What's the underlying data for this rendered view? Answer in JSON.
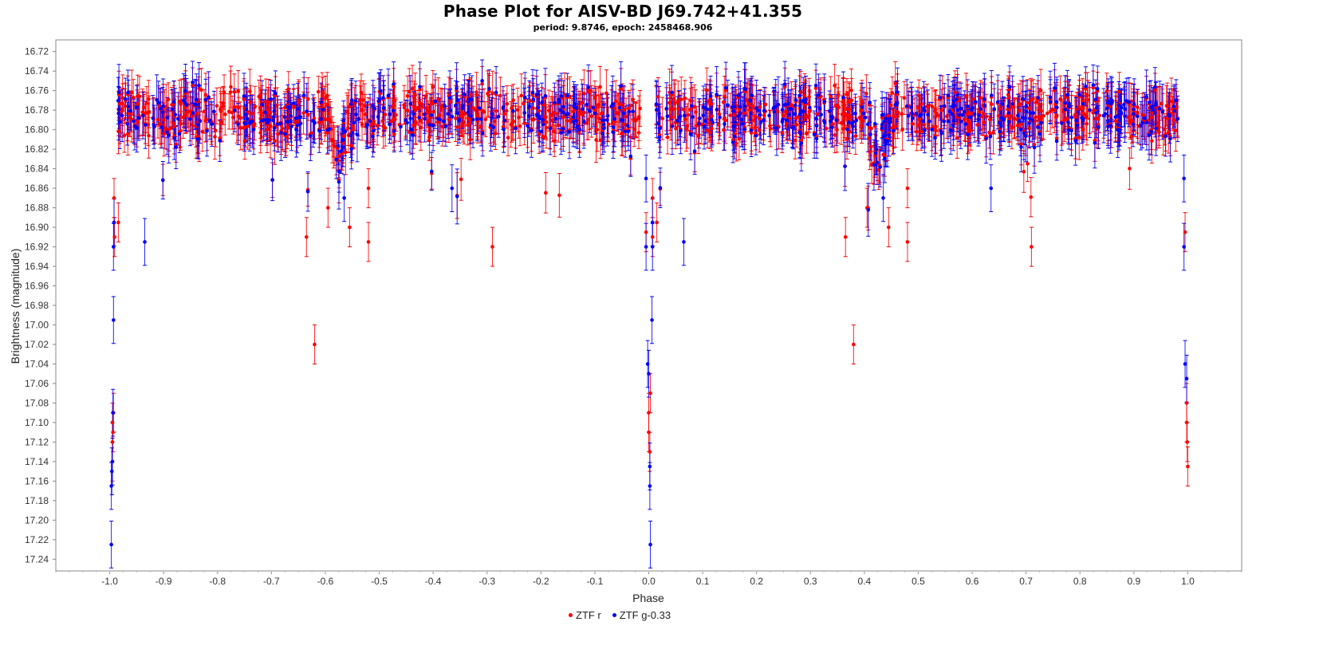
{
  "chart_data": {
    "type": "scatter",
    "title": "Phase Plot for AISV-BD J69.742+41.355",
    "subtitle": "period: 9.8746, epoch: 2458468.906",
    "xlabel": "Phase",
    "ylabel": "Brightness (magnitude)",
    "xlim": [
      -1.1,
      1.1
    ],
    "ylim": [
      17.252,
      16.708
    ],
    "y_inverted": true,
    "x_ticks": [
      "-1.0",
      "-0.9",
      "-0.8",
      "-0.7",
      "-0.6",
      "-0.5",
      "-0.4",
      "-0.3",
      "-0.2",
      "-0.1",
      "0.0",
      "0.1",
      "0.2",
      "0.3",
      "0.4",
      "0.5",
      "0.6",
      "0.7",
      "0.8",
      "0.9",
      "1.0"
    ],
    "y_ticks": [
      "16.72",
      "16.74",
      "16.76",
      "16.78",
      "16.80",
      "16.82",
      "16.84",
      "16.86",
      "16.88",
      "16.90",
      "16.92",
      "16.94",
      "16.96",
      "16.98",
      "17.00",
      "17.02",
      "17.04",
      "17.06",
      "17.08",
      "17.10",
      "17.12",
      "17.14",
      "17.16",
      "17.18",
      "17.20",
      "17.22",
      "17.24"
    ],
    "legend_position": "bottom-center",
    "grid": false,
    "series": [
      {
        "name": "ZTF r",
        "color": "#ff0000",
        "baseline_mag": 16.785,
        "baseline_scatter": 0.02,
        "error_bar": 0.02,
        "eclipse_points": [
          {
            "x": -0.995,
            "y": 17.14
          },
          {
            "x": -0.995,
            "y": 17.12
          },
          {
            "x": -0.995,
            "y": 17.1
          },
          {
            "x": -0.994,
            "y": 17.11
          },
          {
            "x": -0.993,
            "y": 17.09
          },
          {
            "x": -0.992,
            "y": 16.87
          },
          {
            "x": -0.991,
            "y": 16.91
          },
          {
            "x": -0.984,
            "y": 16.895
          },
          {
            "x": -0.62,
            "y": 17.02
          },
          {
            "x": -0.635,
            "y": 16.91
          },
          {
            "x": -0.595,
            "y": 16.88
          },
          {
            "x": -0.555,
            "y": 16.9
          },
          {
            "x": -0.52,
            "y": 16.915
          },
          {
            "x": -0.52,
            "y": 16.86
          },
          {
            "x": -0.29,
            "y": 16.92
          },
          {
            "x": -0.005,
            "y": 16.905
          },
          {
            "x": 0.0,
            "y": 17.09
          },
          {
            "x": 0.0,
            "y": 17.11
          },
          {
            "x": 0.002,
            "y": 17.13
          },
          {
            "x": 0.003,
            "y": 17.07
          },
          {
            "x": 0.007,
            "y": 16.87
          },
          {
            "x": 0.007,
            "y": 16.91
          },
          {
            "x": 0.015,
            "y": 16.895
          },
          {
            "x": 0.365,
            "y": 16.91
          },
          {
            "x": 0.38,
            "y": 17.02
          },
          {
            "x": 0.405,
            "y": 16.88
          },
          {
            "x": 0.445,
            "y": 16.9
          },
          {
            "x": 0.48,
            "y": 16.915
          },
          {
            "x": 0.48,
            "y": 16.86
          },
          {
            "x": 0.71,
            "y": 16.92
          },
          {
            "x": 0.995,
            "y": 16.905
          },
          {
            "x": 0.998,
            "y": 17.08
          },
          {
            "x": 0.998,
            "y": 17.1
          },
          {
            "x": 0.999,
            "y": 17.12
          },
          {
            "x": 1.0,
            "y": 17.145
          }
        ]
      },
      {
        "name": "ZTF g-0.33",
        "color": "#0000ff",
        "baseline_mag": 16.785,
        "baseline_scatter": 0.022,
        "error_bar": 0.024,
        "eclipse_points": [
          {
            "x": -0.997,
            "y": 17.225
          },
          {
            "x": -0.997,
            "y": 17.165
          },
          {
            "x": -0.996,
            "y": 17.15
          },
          {
            "x": -0.995,
            "y": 17.14
          },
          {
            "x": -0.994,
            "y": 17.09
          },
          {
            "x": -0.993,
            "y": 16.995
          },
          {
            "x": -0.993,
            "y": 16.92
          },
          {
            "x": -0.992,
            "y": 16.895
          },
          {
            "x": -0.935,
            "y": 16.915
          },
          {
            "x": -0.565,
            "y": 16.87
          },
          {
            "x": -0.365,
            "y": 16.86
          },
          {
            "x": -0.005,
            "y": 16.92
          },
          {
            "x": -0.005,
            "y": 16.85
          },
          {
            "x": -0.002,
            "y": 17.04
          },
          {
            "x": 0.0,
            "y": 17.05
          },
          {
            "x": 0.002,
            "y": 17.145
          },
          {
            "x": 0.002,
            "y": 17.165
          },
          {
            "x": 0.003,
            "y": 17.225
          },
          {
            "x": 0.006,
            "y": 16.995
          },
          {
            "x": 0.007,
            "y": 16.92
          },
          {
            "x": 0.007,
            "y": 16.895
          },
          {
            "x": 0.065,
            "y": 16.915
          },
          {
            "x": 0.435,
            "y": 16.87
          },
          {
            "x": 0.635,
            "y": 16.86
          },
          {
            "x": 0.993,
            "y": 16.85
          },
          {
            "x": 0.993,
            "y": 16.92
          },
          {
            "x": 0.995,
            "y": 17.04
          },
          {
            "x": 0.998,
            "y": 17.055
          }
        ]
      }
    ]
  }
}
